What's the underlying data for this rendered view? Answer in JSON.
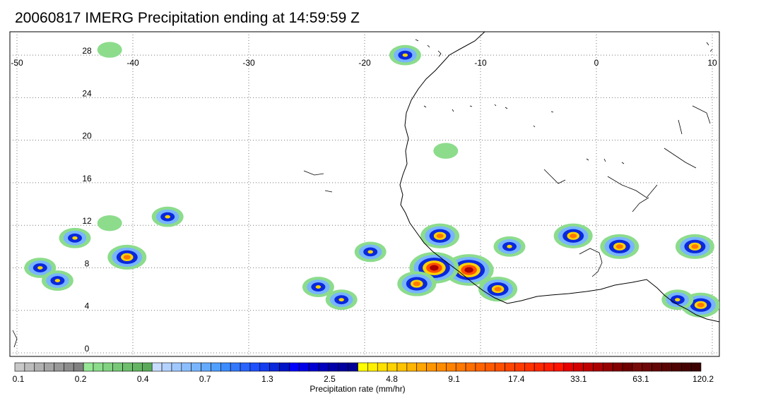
{
  "title": "20060817 IMERG Precipitation ending at 14:59:59 Z",
  "map": {
    "lon_range": [
      -50,
      10
    ],
    "lat_range": [
      0,
      30
    ],
    "lon_ticks": [
      "-50",
      "-40",
      "-30",
      "-20",
      "-10",
      "0",
      "10"
    ],
    "lat_ticks": [
      "0",
      "4",
      "8",
      "12",
      "16",
      "20",
      "24",
      "28"
    ],
    "lon_tick_values": [
      -50,
      -40,
      -30,
      -20,
      -10,
      0,
      10
    ],
    "lat_tick_values": [
      0,
      4,
      8,
      12,
      16,
      20,
      24,
      28
    ],
    "grid": "dotted",
    "coastline_color": "#000000"
  },
  "colorbar": {
    "label": "Precipitation rate (mm/hr)",
    "tick_labels": [
      "0.1",
      "0.2",
      "0.4",
      "0.7",
      "1.3",
      "2.5",
      "4.8",
      "9.1",
      "17.4",
      "33.1",
      "63.1",
      "120.2"
    ],
    "colors": [
      "#c8c8c8",
      "#bcbcbc",
      "#b0b0b0",
      "#a4a4a4",
      "#989898",
      "#8c8c8c",
      "#808080",
      "#96e696",
      "#8cdc8c",
      "#82d282",
      "#78c878",
      "#6ebe6e",
      "#64b464",
      "#5aaa5a",
      "#c8dcff",
      "#b4d2ff",
      "#a0c8ff",
      "#8cbeff",
      "#78b4ff",
      "#64aaff",
      "#50a0ff",
      "#3c8cff",
      "#3278ff",
      "#2864ff",
      "#1e50ff",
      "#143cf0",
      "#0a28dc",
      "#0014c8",
      "#0000ff",
      "#0000e6",
      "#0000d2",
      "#0000be",
      "#0000aa",
      "#0000a0",
      "#000096",
      "#ffff00",
      "#fff000",
      "#ffe100",
      "#ffd200",
      "#ffc300",
      "#ffb400",
      "#ffa500",
      "#ff9600",
      "#ff8c00",
      "#ff8200",
      "#ff7800",
      "#ff6e00",
      "#ff6400",
      "#ff5a00",
      "#ff5000",
      "#ff4600",
      "#ff3c00",
      "#ff3200",
      "#ff2800",
      "#ff1e00",
      "#ff1400",
      "#e60000",
      "#d20000",
      "#be0000",
      "#aa0000",
      "#960000",
      "#820000",
      "#6e0000",
      "#780a0a",
      "#6e0808",
      "#640606",
      "#5a0404",
      "#500303",
      "#460202",
      "#3c0101"
    ]
  },
  "precip_cells": [
    {
      "lon": -45.0,
      "lat": 10.8,
      "intensity": "moderate"
    },
    {
      "lon": -40.5,
      "lat": 9.0,
      "intensity": "heavy"
    },
    {
      "lon": -48.0,
      "lat": 8.0,
      "intensity": "moderate"
    },
    {
      "lon": -46.5,
      "lat": 6.8,
      "intensity": "moderate"
    },
    {
      "lon": -42.0,
      "lat": 12.2,
      "intensity": "light"
    },
    {
      "lon": -37.0,
      "lat": 12.8,
      "intensity": "moderate"
    },
    {
      "lon": -11.0,
      "lat": 7.8,
      "intensity": "extreme"
    },
    {
      "lon": -14.0,
      "lat": 8.0,
      "intensity": "extreme"
    },
    {
      "lon": -13.5,
      "lat": 11.0,
      "intensity": "heavy"
    },
    {
      "lon": -15.5,
      "lat": 6.5,
      "intensity": "heavy"
    },
    {
      "lon": -8.5,
      "lat": 6.0,
      "intensity": "heavy"
    },
    {
      "lon": -22.0,
      "lat": 5.0,
      "intensity": "moderate"
    },
    {
      "lon": -24.0,
      "lat": 6.2,
      "intensity": "moderate"
    },
    {
      "lon": -19.5,
      "lat": 9.5,
      "intensity": "moderate"
    },
    {
      "lon": -7.5,
      "lat": 10.0,
      "intensity": "moderate"
    },
    {
      "lon": -2.0,
      "lat": 11.0,
      "intensity": "heavy"
    },
    {
      "lon": 2.0,
      "lat": 10.0,
      "intensity": "heavy"
    },
    {
      "lon": 8.5,
      "lat": 10.0,
      "intensity": "heavy"
    },
    {
      "lon": 9.0,
      "lat": 4.5,
      "intensity": "heavy"
    },
    {
      "lon": 7.0,
      "lat": 5.0,
      "intensity": "moderate"
    },
    {
      "lon": -16.5,
      "lat": 28.0,
      "intensity": "moderate"
    },
    {
      "lon": -42.0,
      "lat": 28.5,
      "intensity": "light"
    },
    {
      "lon": -13.0,
      "lat": 19.0,
      "intensity": "light"
    }
  ]
}
